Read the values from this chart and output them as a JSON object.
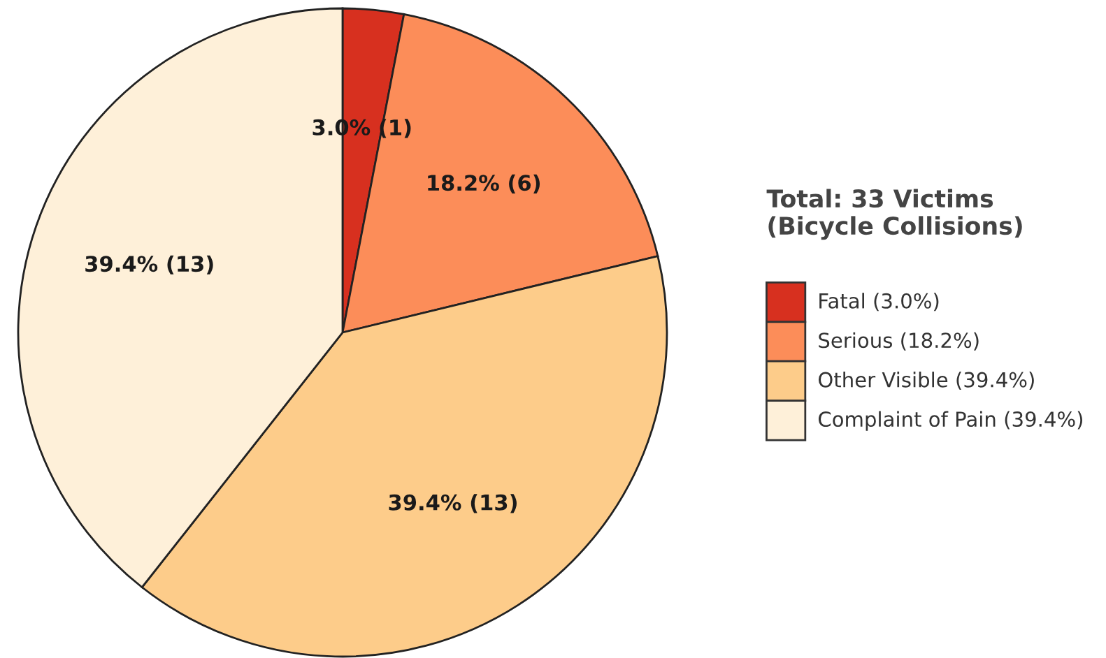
{
  "chart_data": {
    "type": "pie",
    "categories": [
      "Fatal (3.0%)",
      "Serious (18.2%)",
      "Other Visible (39.4%)",
      "Complaint of Pain (39.4%)"
    ],
    "values": [
      1,
      6,
      13,
      13
    ],
    "colors": [
      "#d7301f",
      "#fc8d59",
      "#fdcc8a",
      "#fef0d9"
    ],
    "value_labels": [
      "3.0% (1)",
      "18.2% (6)",
      "39.4% (13)",
      "39.4% (13)"
    ],
    "legend_title": "Total: 33 Victims\n(Bicycle Collisions)",
    "legend": "right"
  }
}
